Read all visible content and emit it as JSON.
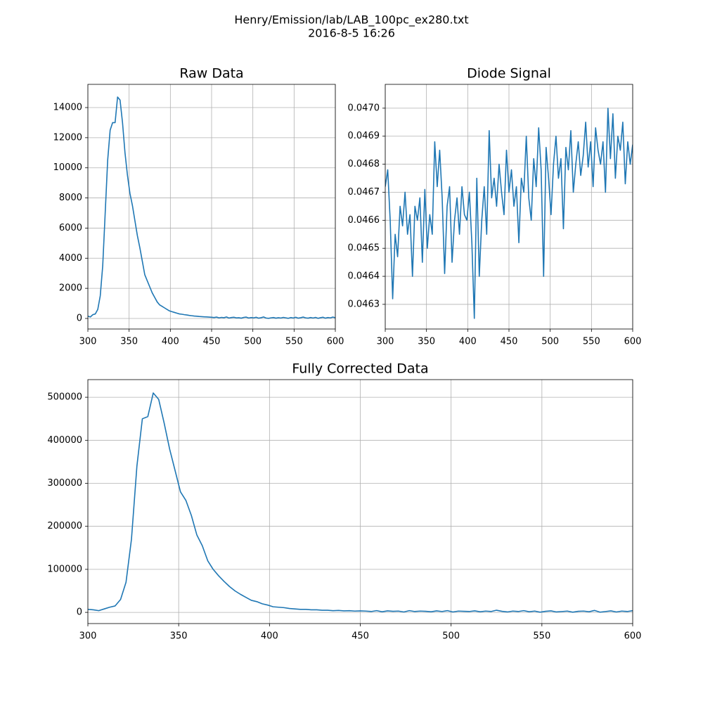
{
  "suptitle": [
    "Henry/Emission/lab/LAB_100pc_ex280.txt",
    "2016-8-5     16:26"
  ],
  "chart_data": [
    {
      "type": "line",
      "title": "Raw Data",
      "color": "#1f77b4",
      "grid": true,
      "xlim": [
        300,
        600
      ],
      "xticks": [
        300,
        350,
        400,
        450,
        500,
        550,
        600
      ],
      "ylim": [
        -700,
        15540
      ],
      "yticks": [
        0,
        2000,
        4000,
        6000,
        8000,
        10000,
        12000,
        14000
      ],
      "x": [
        300,
        303,
        306,
        309,
        312,
        315,
        318,
        321,
        324,
        327,
        330,
        333,
        336,
        339,
        342,
        345,
        348,
        351,
        354,
        357,
        360,
        363,
        366,
        369,
        372,
        375,
        378,
        381,
        384,
        387,
        390,
        393,
        396,
        399,
        402,
        405,
        408,
        411,
        414,
        417,
        420,
        423,
        426,
        429,
        432,
        435,
        438,
        441,
        444,
        447,
        450,
        453,
        456,
        459,
        462,
        465,
        468,
        471,
        474,
        477,
        480,
        483,
        486,
        489,
        492,
        495,
        498,
        501,
        504,
        507,
        510,
        513,
        516,
        519,
        522,
        525,
        528,
        531,
        534,
        537,
        540,
        543,
        546,
        549,
        552,
        555,
        558,
        561,
        564,
        567,
        570,
        573,
        576,
        579,
        582,
        585,
        588,
        591,
        594,
        597,
        600
      ],
      "values": [
        150,
        100,
        250,
        300,
        600,
        1500,
        3500,
        7000,
        10500,
        12500,
        13000,
        13000,
        14700,
        14500,
        13000,
        11000,
        9500,
        8300,
        7500,
        6500,
        5500,
        4700,
        3800,
        2900,
        2500,
        2100,
        1700,
        1400,
        1100,
        900,
        800,
        700,
        600,
        500,
        450,
        400,
        350,
        300,
        280,
        250,
        230,
        200,
        180,
        160,
        150,
        130,
        120,
        110,
        100,
        90,
        80,
        60,
        90,
        40,
        70,
        50,
        100,
        30,
        60,
        80,
        40,
        50,
        20,
        70,
        90,
        30,
        60,
        40,
        80,
        20,
        50,
        100,
        30,
        10,
        40,
        60,
        20,
        50,
        30,
        70,
        40,
        10,
        60,
        30,
        80,
        20,
        50,
        90,
        40,
        20,
        60,
        30,
        70,
        10,
        50,
        80,
        20,
        60,
        40,
        90,
        50
      ]
    },
    {
      "type": "line",
      "title": "Diode Signal",
      "color": "#1f77b4",
      "grid": true,
      "xlim": [
        300,
        600
      ],
      "xticks": [
        300,
        350,
        400,
        450,
        500,
        550,
        600
      ],
      "ylim": [
        0.046212,
        0.047085
      ],
      "yticks": [
        0.0463,
        0.0464,
        0.0465,
        0.0466,
        0.0467,
        0.0468,
        0.0469,
        {
          "value": 0.047,
          "label": "0.0470"
        }
      ],
      "x": [
        300,
        303,
        306,
        309,
        312,
        315,
        318,
        321,
        324,
        327,
        330,
        333,
        336,
        339,
        342,
        345,
        348,
        351,
        354,
        357,
        360,
        363,
        366,
        369,
        372,
        375,
        378,
        381,
        384,
        387,
        390,
        393,
        396,
        399,
        402,
        405,
        408,
        411,
        414,
        417,
        420,
        423,
        426,
        429,
        432,
        435,
        438,
        441,
        444,
        447,
        450,
        453,
        456,
        459,
        462,
        465,
        468,
        471,
        474,
        477,
        480,
        483,
        486,
        489,
        492,
        495,
        498,
        501,
        504,
        507,
        510,
        513,
        516,
        519,
        522,
        525,
        528,
        531,
        534,
        537,
        540,
        543,
        546,
        549,
        552,
        555,
        558,
        561,
        564,
        567,
        570,
        573,
        576,
        579,
        582,
        585,
        588,
        591,
        594,
        597,
        600
      ],
      "values": [
        0.04672,
        0.04678,
        0.0466,
        0.04632,
        0.04655,
        0.04647,
        0.04665,
        0.04658,
        0.0467,
        0.04655,
        0.04662,
        0.0464,
        0.04665,
        0.0466,
        0.04668,
        0.04645,
        0.04671,
        0.0465,
        0.04662,
        0.04655,
        0.04688,
        0.04672,
        0.04685,
        0.04668,
        0.04641,
        0.04665,
        0.04672,
        0.04645,
        0.0466,
        0.04668,
        0.04655,
        0.04672,
        0.04662,
        0.0466,
        0.0467,
        0.04652,
        0.04625,
        0.04675,
        0.0464,
        0.0466,
        0.04672,
        0.04655,
        0.04692,
        0.04668,
        0.04675,
        0.04665,
        0.0468,
        0.0467,
        0.04662,
        0.04685,
        0.0467,
        0.04678,
        0.04665,
        0.04672,
        0.04652,
        0.04675,
        0.0467,
        0.0469,
        0.04668,
        0.0466,
        0.04682,
        0.04672,
        0.04693,
        0.04678,
        0.0464,
        0.04686,
        0.04675,
        0.04662,
        0.0468,
        0.0469,
        0.04675,
        0.04682,
        0.04657,
        0.04686,
        0.04678,
        0.04692,
        0.0467,
        0.0468,
        0.04688,
        0.04676,
        0.04683,
        0.04695,
        0.04679,
        0.04688,
        0.04672,
        0.04693,
        0.04685,
        0.0468,
        0.04688,
        0.0467,
        0.047,
        0.04682,
        0.04698,
        0.04675,
        0.0469,
        0.04685,
        0.04695,
        0.04673,
        0.04688,
        0.0468,
        0.04687
      ]
    },
    {
      "type": "line",
      "title": "Fully Corrected Data",
      "color": "#1f77b4",
      "grid": true,
      "xlim": [
        300,
        600
      ],
      "xticks": [
        300,
        350,
        400,
        450,
        500,
        550,
        600
      ],
      "ylim": [
        -26000,
        541000
      ],
      "yticks": [
        0,
        100000,
        200000,
        300000,
        400000,
        500000
      ],
      "x": [
        300,
        303,
        306,
        309,
        312,
        315,
        318,
        321,
        324,
        327,
        330,
        333,
        336,
        339,
        342,
        345,
        348,
        351,
        354,
        357,
        360,
        363,
        366,
        369,
        372,
        375,
        378,
        381,
        384,
        387,
        390,
        393,
        396,
        399,
        402,
        405,
        408,
        411,
        414,
        417,
        420,
        423,
        426,
        429,
        432,
        435,
        438,
        441,
        444,
        447,
        450,
        453,
        456,
        459,
        462,
        465,
        468,
        471,
        474,
        477,
        480,
        483,
        486,
        489,
        492,
        495,
        498,
        501,
        504,
        507,
        510,
        513,
        516,
        519,
        522,
        525,
        528,
        531,
        534,
        537,
        540,
        543,
        546,
        549,
        552,
        555,
        558,
        561,
        564,
        567,
        570,
        573,
        576,
        579,
        582,
        585,
        588,
        591,
        594,
        597,
        600
      ],
      "values": [
        7000,
        6000,
        4000,
        8000,
        12000,
        15000,
        30000,
        70000,
        170000,
        340000,
        450000,
        455000,
        510000,
        495000,
        440000,
        380000,
        330000,
        280000,
        260000,
        225000,
        180000,
        155000,
        120000,
        100000,
        85000,
        72000,
        60000,
        50000,
        42000,
        35000,
        28000,
        25000,
        20000,
        17000,
        13000,
        12000,
        11000,
        9000,
        8000,
        7000,
        7000,
        6000,
        6000,
        5000,
        5000,
        4000,
        4500,
        3500,
        4000,
        3000,
        3500,
        3000,
        2000,
        4000,
        1500,
        3500,
        2500,
        3000,
        1000,
        4000,
        2000,
        3000,
        2500,
        1500,
        3500,
        2000,
        4000,
        1000,
        3000,
        2500,
        2000,
        3500,
        1500,
        3000,
        2000,
        5000,
        2500,
        1000,
        3000,
        2000,
        4000,
        1500,
        3000,
        500,
        2500,
        3500,
        1000,
        2000,
        3000,
        500,
        2500,
        3000,
        1500,
        4500,
        500,
        2000,
        3500,
        1000,
        3000,
        2000,
        4000
      ]
    }
  ]
}
